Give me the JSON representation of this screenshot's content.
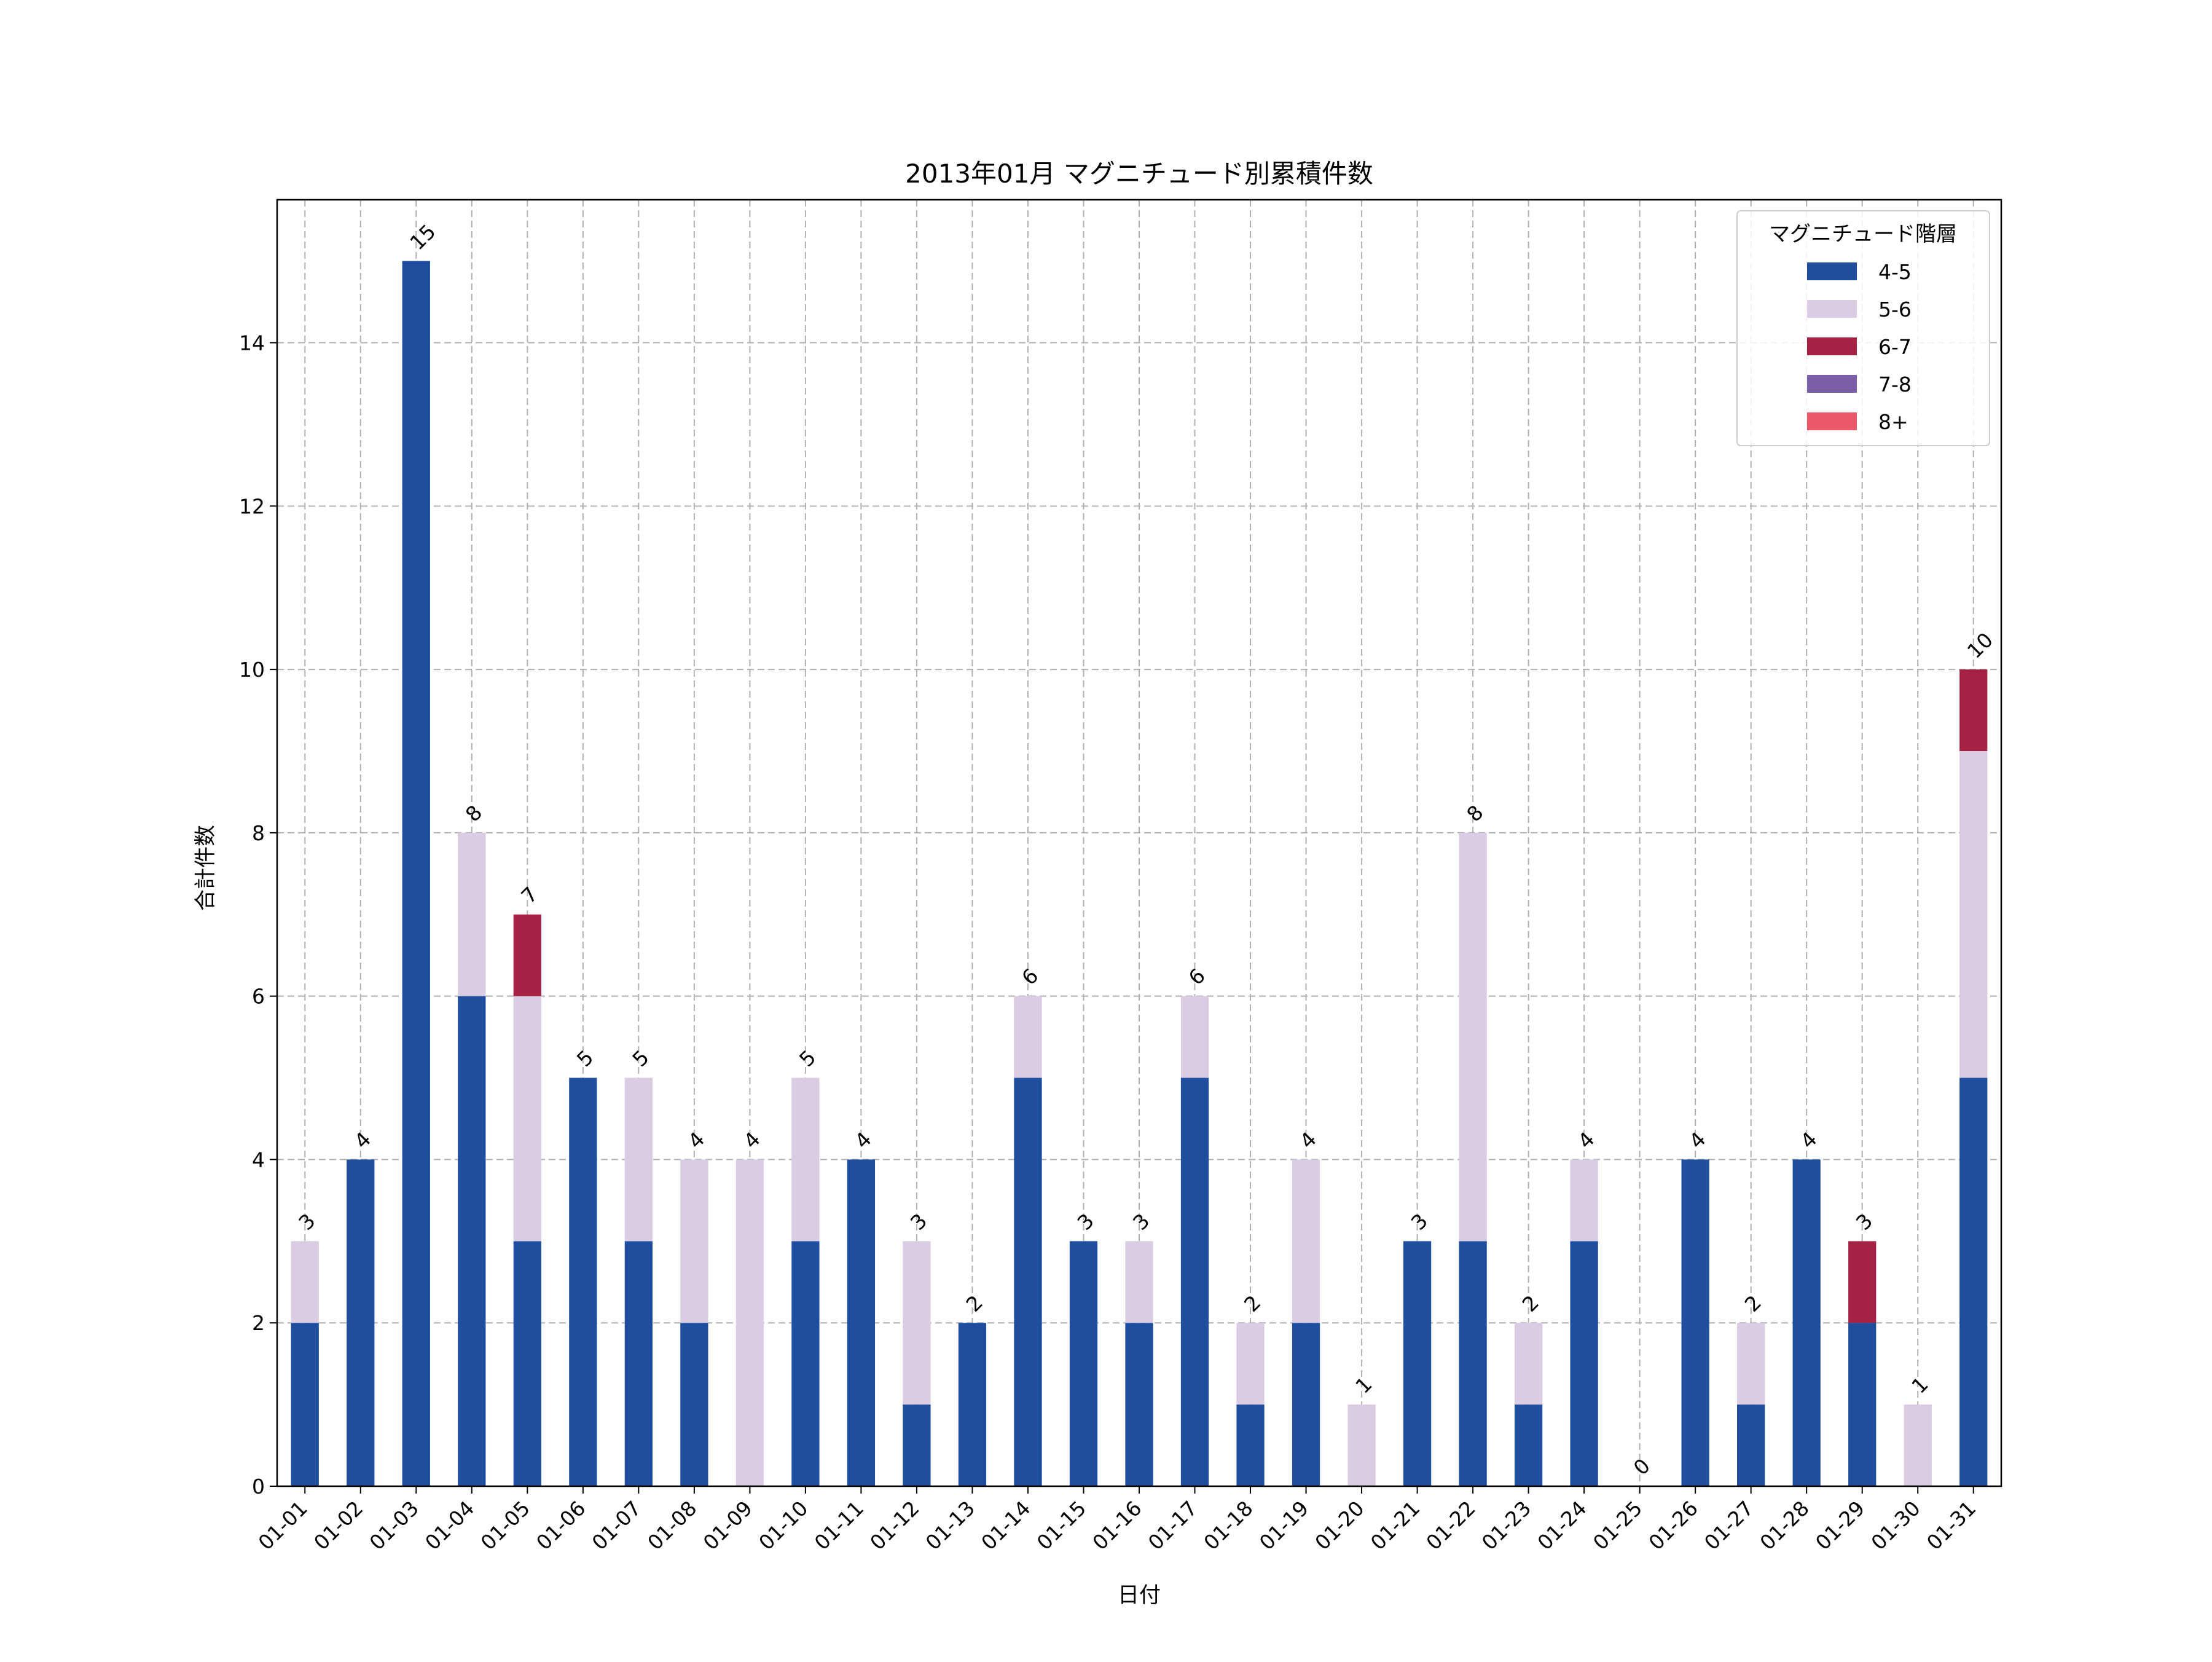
{
  "chart_data": {
    "type": "bar",
    "stacked": true,
    "title": "2013年01月 マグニチュード別累積件数",
    "xlabel": "日付",
    "ylabel": "合計件数",
    "ylim": [
      0,
      15.75
    ],
    "yticks": [
      0,
      2,
      4,
      6,
      8,
      10,
      12,
      14
    ],
    "grid": true,
    "legend_position": "top-right",
    "legend_title": "マグニチュード階層",
    "categories": [
      "01-01",
      "01-02",
      "01-03",
      "01-04",
      "01-05",
      "01-06",
      "01-07",
      "01-08",
      "01-09",
      "01-10",
      "01-11",
      "01-12",
      "01-13",
      "01-14",
      "01-15",
      "01-16",
      "01-17",
      "01-18",
      "01-19",
      "01-20",
      "01-21",
      "01-22",
      "01-23",
      "01-24",
      "01-25",
      "01-26",
      "01-27",
      "01-28",
      "01-29",
      "01-30",
      "01-31"
    ],
    "series": [
      {
        "name": "4-5",
        "color": "#1f4e9e",
        "values": [
          2,
          4,
          15,
          6,
          3,
          5,
          3,
          2,
          0,
          3,
          4,
          1,
          2,
          5,
          3,
          2,
          5,
          1,
          2,
          0,
          3,
          3,
          1,
          3,
          0,
          4,
          1,
          4,
          2,
          0,
          5
        ]
      },
      {
        "name": "5-6",
        "color": "#d9cce3",
        "values": [
          1,
          0,
          0,
          2,
          3,
          0,
          2,
          2,
          4,
          2,
          0,
          2,
          0,
          1,
          0,
          1,
          1,
          1,
          2,
          1,
          0,
          5,
          1,
          1,
          0,
          0,
          1,
          0,
          0,
          1,
          4
        ]
      },
      {
        "name": "6-7",
        "color": "#a52244",
        "values": [
          0,
          0,
          0,
          0,
          1,
          0,
          0,
          0,
          0,
          0,
          0,
          0,
          0,
          0,
          0,
          0,
          0,
          0,
          0,
          0,
          0,
          0,
          0,
          0,
          0,
          0,
          0,
          0,
          1,
          0,
          1
        ]
      },
      {
        "name": "7-8",
        "color": "#7a5ea8",
        "values": [
          0,
          0,
          0,
          0,
          0,
          0,
          0,
          0,
          0,
          0,
          0,
          0,
          0,
          0,
          0,
          0,
          0,
          0,
          0,
          0,
          0,
          0,
          0,
          0,
          0,
          0,
          0,
          0,
          0,
          0,
          0
        ]
      },
      {
        "name": "8+",
        "color": "#eb5a6b",
        "values": [
          0,
          0,
          0,
          0,
          0,
          0,
          0,
          0,
          0,
          0,
          0,
          0,
          0,
          0,
          0,
          0,
          0,
          0,
          0,
          0,
          0,
          0,
          0,
          0,
          0,
          0,
          0,
          0,
          0,
          0,
          0
        ]
      }
    ],
    "totals": [
      3,
      4,
      15,
      8,
      7,
      5,
      5,
      4,
      4,
      5,
      4,
      3,
      2,
      6,
      3,
      3,
      6,
      2,
      4,
      1,
      3,
      8,
      2,
      4,
      0,
      4,
      2,
      4,
      3,
      1,
      10
    ]
  }
}
